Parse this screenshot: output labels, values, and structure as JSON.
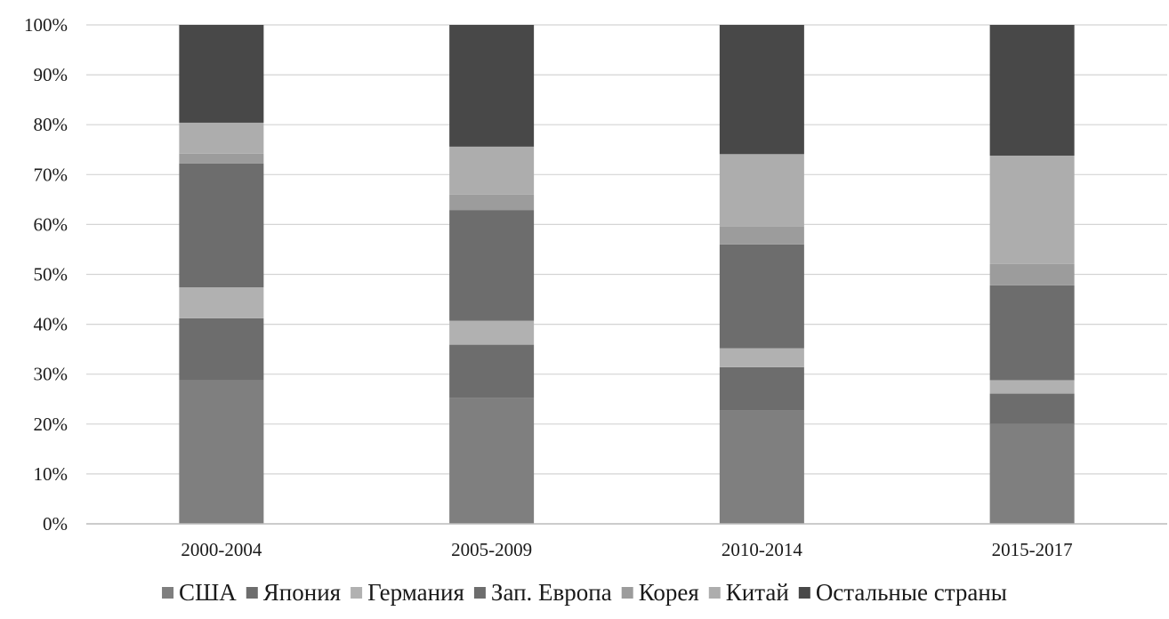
{
  "chart_data": {
    "type": "bar",
    "stacked": true,
    "percent_stacked": true,
    "categories": [
      "2000-2004",
      "2005-2009",
      "2010-2014",
      "2015-2017"
    ],
    "series": [
      {
        "name": "США",
        "color": "#7f7f7f",
        "values": [
          28.8,
          25.3,
          22.7,
          20.0
        ]
      },
      {
        "name": "Япония",
        "color": "#6d6d6d",
        "values": [
          12.4,
          10.6,
          8.7,
          6.1
        ]
      },
      {
        "name": "Германия",
        "color": "#b1b1b1",
        "values": [
          6.2,
          4.8,
          3.8,
          2.7
        ]
      },
      {
        "name": "Зап. Европа",
        "color": "#6d6d6d",
        "values": [
          24.8,
          22.2,
          20.8,
          19.0
        ]
      },
      {
        "name": "Корея",
        "color": "#9c9c9c",
        "values": [
          2.0,
          3.1,
          3.6,
          4.3
        ]
      },
      {
        "name": "Китай",
        "color": "#adadad",
        "values": [
          6.2,
          9.6,
          14.5,
          21.7
        ]
      },
      {
        "name": "Остальные страны",
        "color": "#484848",
        "values": [
          19.6,
          24.4,
          25.9,
          26.2
        ]
      }
    ],
    "ylim": [
      0,
      100
    ],
    "y_ticks": [
      "0%",
      "10%",
      "20%",
      "30%",
      "40%",
      "50%",
      "60%",
      "70%",
      "80%",
      "90%",
      "100%"
    ],
    "grid": true,
    "legend_position": "bottom"
  }
}
